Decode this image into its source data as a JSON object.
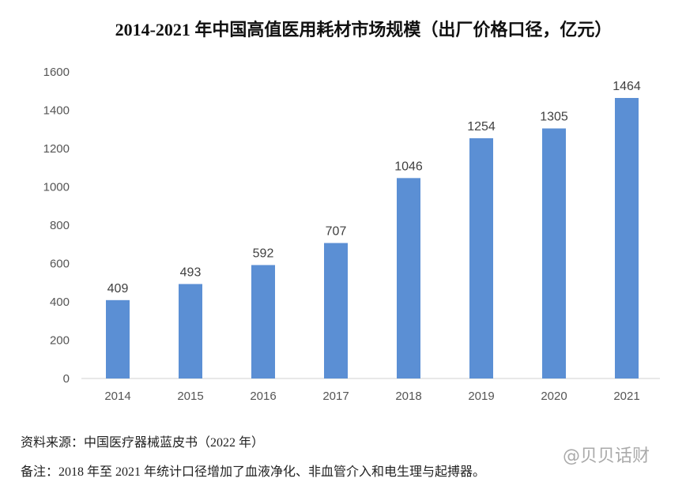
{
  "chart_data": {
    "type": "bar",
    "title": "2014-2021 年中国高值医用耗材市场规模（出厂价格口径，亿元）",
    "categories": [
      "2014",
      "2015",
      "2016",
      "2017",
      "2018",
      "2019",
      "2020",
      "2021"
    ],
    "values": [
      409,
      493,
      592,
      707,
      1046,
      1254,
      1305,
      1464
    ],
    "ylim": [
      0,
      1600
    ],
    "yticks": [
      0,
      200,
      400,
      600,
      800,
      1000,
      1200,
      1400,
      1600
    ],
    "grid": false,
    "bar_color": "#5b8fd4",
    "data_labels": true
  },
  "footer": {
    "source": "资料来源：中国医疗器械蓝皮书（2022 年）",
    "note": "备注：2018 年至 2021 年统计口径增加了血液净化、非血管介入和电生理与起搏器。"
  },
  "watermark": "@贝贝话财"
}
